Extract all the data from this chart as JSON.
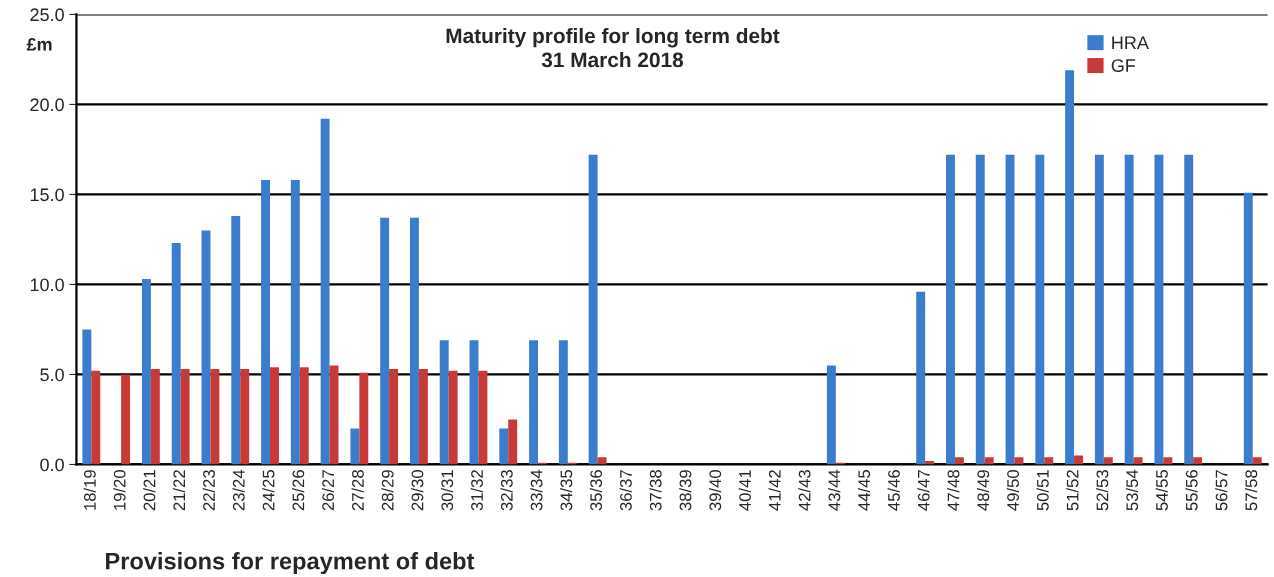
{
  "chart_data": {
    "type": "bar",
    "title": "Maturity profile for long term debt\n31 March 2018",
    "ylabel": "£m",
    "xlabel": "Provisions for repayment of debt",
    "categories": [
      "18/19",
      "19/20",
      "20/21",
      "21/22",
      "22/23",
      "23/24",
      "24/25",
      "25/26",
      "26/27",
      "27/28",
      "28/29",
      "29/30",
      "30/31",
      "31/32",
      "32/33",
      "33/34",
      "34/35",
      "35/36",
      "36/37",
      "37/38",
      "38/39",
      "39/40",
      "40/41",
      "41/42",
      "42/43",
      "43/44",
      "44/45",
      "45/46",
      "46/47",
      "47/48",
      "48/49",
      "49/50",
      "50/51",
      "51/52",
      "52/53",
      "53/54",
      "54/55",
      "55/56",
      "56/57",
      "57/58"
    ],
    "series": [
      {
        "name": "HRA",
        "color": "#3b7dcc",
        "values": [
          7.5,
          null,
          10.3,
          12.3,
          13.0,
          13.8,
          15.8,
          15.8,
          19.2,
          2.0,
          13.7,
          13.7,
          6.9,
          6.9,
          2.0,
          6.9,
          6.9,
          17.2,
          null,
          null,
          null,
          null,
          null,
          null,
          null,
          5.5,
          null,
          null,
          9.6,
          17.2,
          17.2,
          17.2,
          17.2,
          21.9,
          17.2,
          17.2,
          17.2,
          17.2,
          null,
          15.1
        ]
      },
      {
        "name": "GF",
        "color": "#c83a37",
        "values": [
          5.2,
          5.0,
          5.3,
          5.3,
          5.3,
          5.3,
          5.4,
          5.4,
          5.5,
          5.1,
          5.3,
          5.3,
          5.2,
          5.2,
          2.5,
          0.1,
          0.1,
          0.4,
          null,
          null,
          null,
          null,
          null,
          null,
          null,
          0.1,
          null,
          null,
          0.2,
          0.4,
          0.4,
          0.4,
          0.4,
          0.5,
          0.4,
          0.4,
          0.4,
          0.4,
          null,
          0.4
        ]
      }
    ],
    "ylim": [
      0,
      25
    ],
    "yticks": [
      {
        "value": 0,
        "label": "0.0"
      },
      {
        "value": 5,
        "label": "5.0"
      },
      {
        "value": 10,
        "label": "10.0"
      },
      {
        "value": 15,
        "label": "15.0"
      },
      {
        "value": 20,
        "label": "20.0"
      },
      {
        "value": 25,
        "label": "25.0"
      }
    ],
    "grid": "y",
    "legend": "top right"
  }
}
